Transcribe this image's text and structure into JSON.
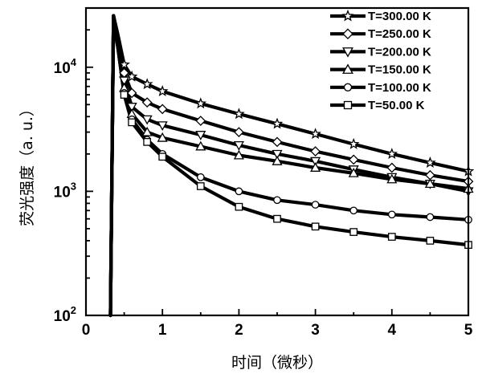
{
  "chart_data": {
    "type": "line",
    "xlabel": "时间（微秒）",
    "ylabel": "荧光强度（a. u.）",
    "xlim": [
      0,
      5
    ],
    "ylim": [
      100,
      30000
    ],
    "yscale": "log",
    "x_ticks": [
      "0",
      "1",
      "2",
      "3",
      "4",
      "5"
    ],
    "y_ticks": [
      {
        "value": 100,
        "base": "10",
        "exp": "2"
      },
      {
        "value": 1000,
        "base": "10",
        "exp": "3"
      },
      {
        "value": 10000,
        "base": "10",
        "exp": "4"
      }
    ],
    "legend_position": "top-right",
    "series": [
      {
        "name": "T=300.00 K",
        "marker": "star",
        "points": [
          [
            0.32,
            100
          ],
          [
            0.36,
            26000
          ],
          [
            0.42,
            18000
          ],
          [
            0.5,
            10500
          ],
          [
            0.6,
            8400
          ],
          [
            0.8,
            7300
          ],
          [
            1,
            6400
          ],
          [
            1.5,
            5100
          ],
          [
            2,
            4200
          ],
          [
            2.5,
            3500
          ],
          [
            3,
            2900
          ],
          [
            3.5,
            2400
          ],
          [
            4,
            2000
          ],
          [
            4.5,
            1700
          ],
          [
            5,
            1450
          ]
        ]
      },
      {
        "name": "T=250.00 K",
        "marker": "diamond",
        "points": [
          [
            0.32,
            100
          ],
          [
            0.36,
            26000
          ],
          [
            0.42,
            17000
          ],
          [
            0.5,
            9000
          ],
          [
            0.6,
            6200
          ],
          [
            0.8,
            5200
          ],
          [
            1,
            4600
          ],
          [
            1.5,
            3700
          ],
          [
            2,
            3000
          ],
          [
            2.5,
            2500
          ],
          [
            3,
            2100
          ],
          [
            3.5,
            1800
          ],
          [
            4,
            1550
          ],
          [
            4.5,
            1350
          ],
          [
            5,
            1200
          ]
        ]
      },
      {
        "name": "T=200.00 K",
        "marker": "triangle-down",
        "points": [
          [
            0.32,
            100
          ],
          [
            0.36,
            26000
          ],
          [
            0.42,
            16000
          ],
          [
            0.5,
            7800
          ],
          [
            0.6,
            4800
          ],
          [
            0.8,
            3800
          ],
          [
            1,
            3400
          ],
          [
            1.5,
            2850
          ],
          [
            2,
            2350
          ],
          [
            2.5,
            2000
          ],
          [
            3,
            1750
          ],
          [
            3.5,
            1500
          ],
          [
            4,
            1300
          ],
          [
            4.5,
            1150
          ],
          [
            5,
            1000
          ]
        ]
      },
      {
        "name": "T=150.00 K",
        "marker": "triangle-up",
        "points": [
          [
            0.32,
            100
          ],
          [
            0.36,
            26000
          ],
          [
            0.42,
            15000
          ],
          [
            0.5,
            6800
          ],
          [
            0.6,
            4200
          ],
          [
            0.8,
            3000
          ],
          [
            1,
            2700
          ],
          [
            1.5,
            2300
          ],
          [
            2,
            1950
          ],
          [
            2.5,
            1750
          ],
          [
            3,
            1550
          ],
          [
            3.5,
            1400
          ],
          [
            4,
            1250
          ],
          [
            4.5,
            1150
          ],
          [
            5,
            1050
          ]
        ]
      },
      {
        "name": "T=100.00 K",
        "marker": "circle",
        "points": [
          [
            0.32,
            100
          ],
          [
            0.36,
            25000
          ],
          [
            0.42,
            14000
          ],
          [
            0.5,
            6200
          ],
          [
            0.6,
            3800
          ],
          [
            0.8,
            2600
          ],
          [
            1,
            2000
          ],
          [
            1.5,
            1300
          ],
          [
            2,
            1000
          ],
          [
            2.5,
            850
          ],
          [
            3,
            780
          ],
          [
            3.5,
            700
          ],
          [
            4,
            650
          ],
          [
            4.5,
            620
          ],
          [
            5,
            590
          ]
        ]
      },
      {
        "name": "T=50.00 K",
        "marker": "square",
        "points": [
          [
            0.32,
            100
          ],
          [
            0.36,
            25000
          ],
          [
            0.42,
            14000
          ],
          [
            0.5,
            6000
          ],
          [
            0.6,
            3600
          ],
          [
            0.8,
            2500
          ],
          [
            1,
            1900
          ],
          [
            1.5,
            1100
          ],
          [
            2,
            750
          ],
          [
            2.5,
            600
          ],
          [
            3,
            520
          ],
          [
            3.5,
            470
          ],
          [
            4,
            430
          ],
          [
            4.5,
            400
          ],
          [
            5,
            370
          ]
        ]
      }
    ]
  }
}
